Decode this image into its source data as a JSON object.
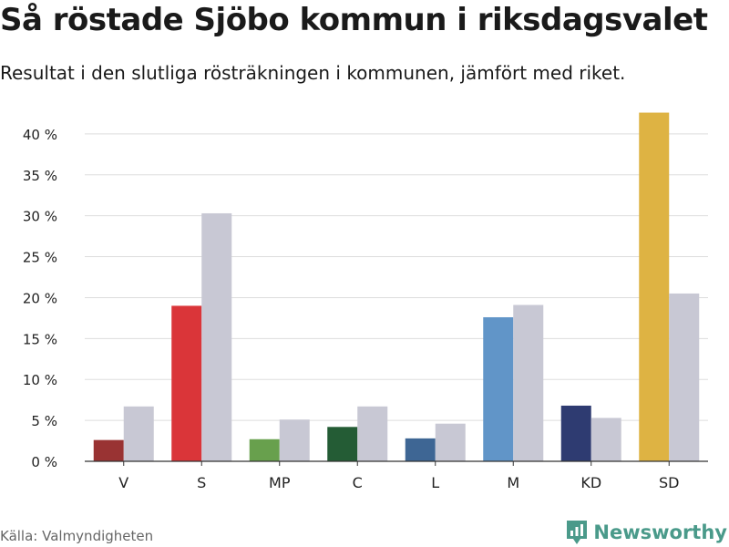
{
  "title": "Så röstade Sjöbo kommun i riksdagsvalet",
  "subtitle": "Resultat i den slutliga rösträkningen i kommunen, jämfört med riket.",
  "source": "Källa: Valmyndigheten",
  "brand": {
    "name": "Newsworthy",
    "icon": "newsworthy-logo-icon",
    "color": "#4a9a8a"
  },
  "colors": {
    "national": "#c8c8d4",
    "gridline": "#dddddd",
    "axis": "#333333"
  },
  "chart_data": {
    "type": "bar",
    "categories": [
      "V",
      "S",
      "MP",
      "C",
      "L",
      "M",
      "KD",
      "SD"
    ],
    "series": [
      {
        "values": [
          2.6,
          19.0,
          2.7,
          4.2,
          2.8,
          17.6,
          6.8,
          42.6
        ]
      },
      {
        "values": [
          6.7,
          30.3,
          5.1,
          6.7,
          4.6,
          19.1,
          5.3,
          20.5
        ]
      }
    ],
    "bar_colors": [
      "#993333",
      "#da3539",
      "#68a04d",
      "#245c35",
      "#3e6694",
      "#6195c8",
      "#2e3b71",
      "#deb343"
    ],
    "yticks": [
      "0 %",
      "5 %",
      "10 %",
      "15 %",
      "20 %",
      "25 %",
      "30 %",
      "35 %",
      "40 %"
    ],
    "ylim": [
      0,
      45
    ],
    "grid": true
  }
}
